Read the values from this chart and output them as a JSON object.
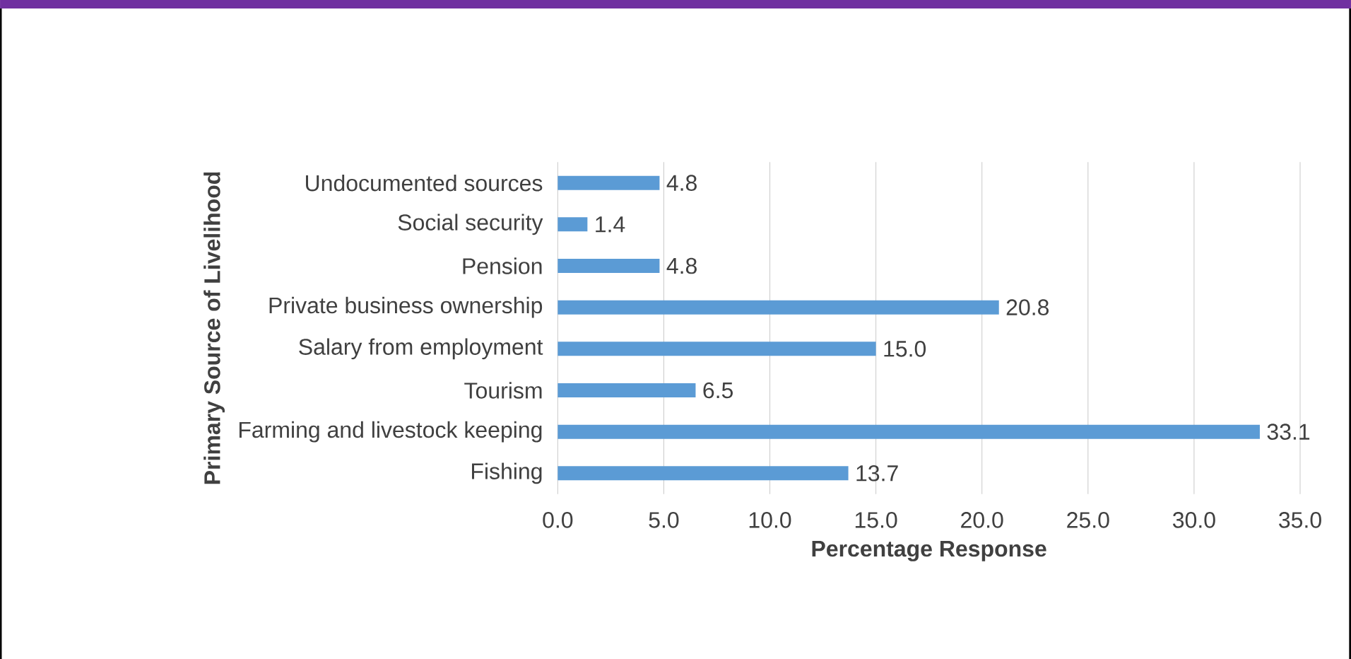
{
  "chart_data": {
    "type": "bar",
    "orientation": "horizontal",
    "xlabel": "Percentage Response",
    "ylabel": "Primary Source of Livelihood",
    "categories": [
      "Undocumented sources",
      "Social security",
      "Pension",
      "Private business ownership",
      "Salary from employment",
      "Tourism",
      "Farming and livestock keeping",
      "Fishing"
    ],
    "values": [
      4.8,
      1.4,
      4.8,
      20.8,
      15.0,
      6.5,
      33.1,
      13.7
    ],
    "value_labels": [
      "4.8",
      "1.4",
      "4.8",
      "20.8",
      "15.0",
      "6.5",
      "33.1",
      "13.7"
    ],
    "color": "#5b9bd5",
    "xlim": [
      0,
      35
    ],
    "xticks": [
      {
        "value": 0,
        "label": "0.0"
      },
      {
        "value": 5,
        "label": "5.0"
      },
      {
        "value": 10,
        "label": "10.0"
      },
      {
        "value": 15,
        "label": "15.0"
      },
      {
        "value": 20,
        "label": "20.0"
      },
      {
        "value": 25,
        "label": "25.0"
      },
      {
        "value": 30,
        "label": "30.0"
      },
      {
        "value": 35,
        "label": "35.0"
      }
    ],
    "grid": "x"
  }
}
